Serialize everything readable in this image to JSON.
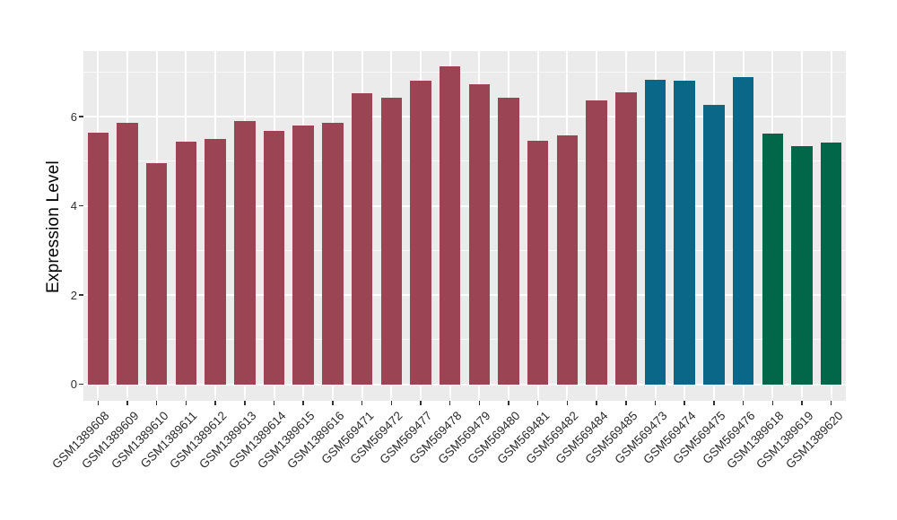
{
  "figure": {
    "background_color": "#FFFFFF",
    "panel_background_color": "#EBEBEB",
    "gridline_color": "#FFFFFF",
    "tick_color": "#333333",
    "axis_text_color": "#303030"
  },
  "chart_data": {
    "type": "bar",
    "title": "",
    "xlabel": "",
    "ylabel": "Expression Level",
    "legend": "none",
    "grid": true,
    "x_label_angle": 45,
    "ylim": [
      -0.37,
      7.47
    ],
    "yticks": [
      0,
      2,
      4,
      6
    ],
    "yticks_minor": [
      1,
      3,
      5,
      7
    ],
    "bar_width_frac": 0.72,
    "categories": [
      "GSM1389608",
      "GSM1389609",
      "GSM1389610",
      "GSM1389611",
      "GSM1389612",
      "GSM1389613",
      "GSM1389614",
      "GSM1389615",
      "GSM1389616",
      "GSM569471",
      "GSM569472",
      "GSM569477",
      "GSM569478",
      "GSM569479",
      "GSM569480",
      "GSM569481",
      "GSM569482",
      "GSM569484",
      "GSM569485",
      "GSM569473",
      "GSM569474",
      "GSM569475",
      "GSM569476",
      "GSM1389618",
      "GSM1389619",
      "GSM1389620"
    ],
    "values": [
      5.64,
      5.86,
      4.95,
      5.44,
      5.5,
      5.9,
      5.68,
      5.8,
      5.86,
      6.53,
      6.42,
      6.81,
      7.13,
      6.72,
      6.42,
      5.45,
      5.58,
      6.37,
      6.55,
      6.82,
      6.8,
      6.27,
      6.89,
      5.62,
      5.33,
      5.42
    ],
    "bar_groups": [
      0,
      0,
      0,
      0,
      0,
      0,
      0,
      0,
      0,
      0,
      0,
      0,
      0,
      0,
      0,
      0,
      0,
      0,
      0,
      1,
      1,
      1,
      1,
      2,
      2,
      2
    ],
    "group_colors": [
      "#9B4453",
      "#0B6787",
      "#026649"
    ]
  }
}
